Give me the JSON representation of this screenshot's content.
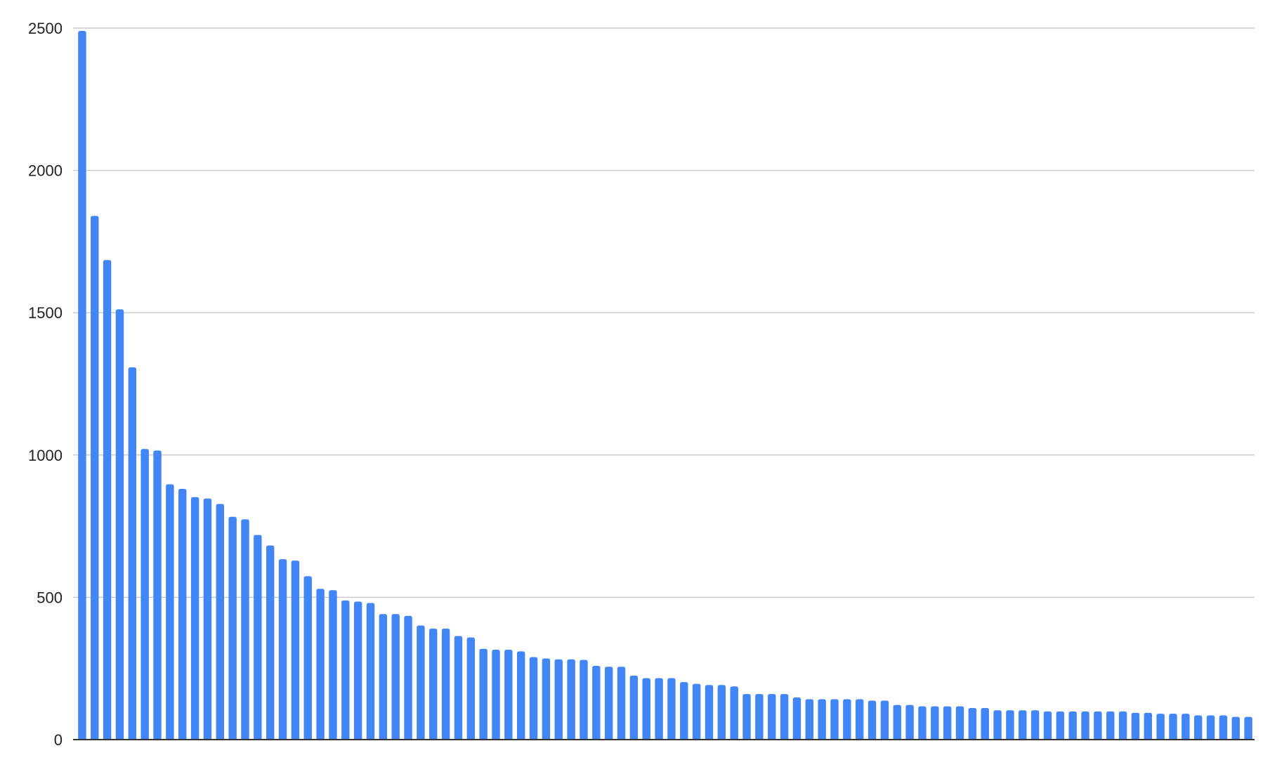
{
  "chart_data": {
    "type": "bar",
    "title": "",
    "xlabel": "",
    "ylabel": "",
    "ylim": [
      0,
      2500
    ],
    "yticks": [
      "0",
      "500",
      "1000",
      "1500",
      "2000",
      "2500"
    ],
    "grid": true,
    "legend": "none",
    "bar_color": "#4285F4",
    "values": [
      2490,
      1840,
      1685,
      1512,
      1308,
      1021,
      1016,
      897,
      881,
      852,
      847,
      828,
      783,
      774,
      719,
      682,
      634,
      629,
      574,
      530,
      525,
      489,
      485,
      480,
      441,
      441,
      435,
      401,
      390,
      390,
      364,
      359,
      319,
      316,
      316,
      310,
      290,
      285,
      282,
      282,
      280,
      259,
      256,
      256,
      225,
      216,
      216,
      216,
      202,
      196,
      192,
      192,
      187,
      160,
      160,
      160,
      160,
      148,
      142,
      142,
      142,
      142,
      142,
      137,
      137,
      122,
      122,
      117,
      117,
      117,
      117,
      111,
      111,
      103,
      103,
      103,
      103,
      99,
      99,
      99,
      99,
      99,
      99,
      99,
      94,
      94,
      91,
      91,
      91,
      85,
      85,
      85,
      80,
      80
    ]
  }
}
